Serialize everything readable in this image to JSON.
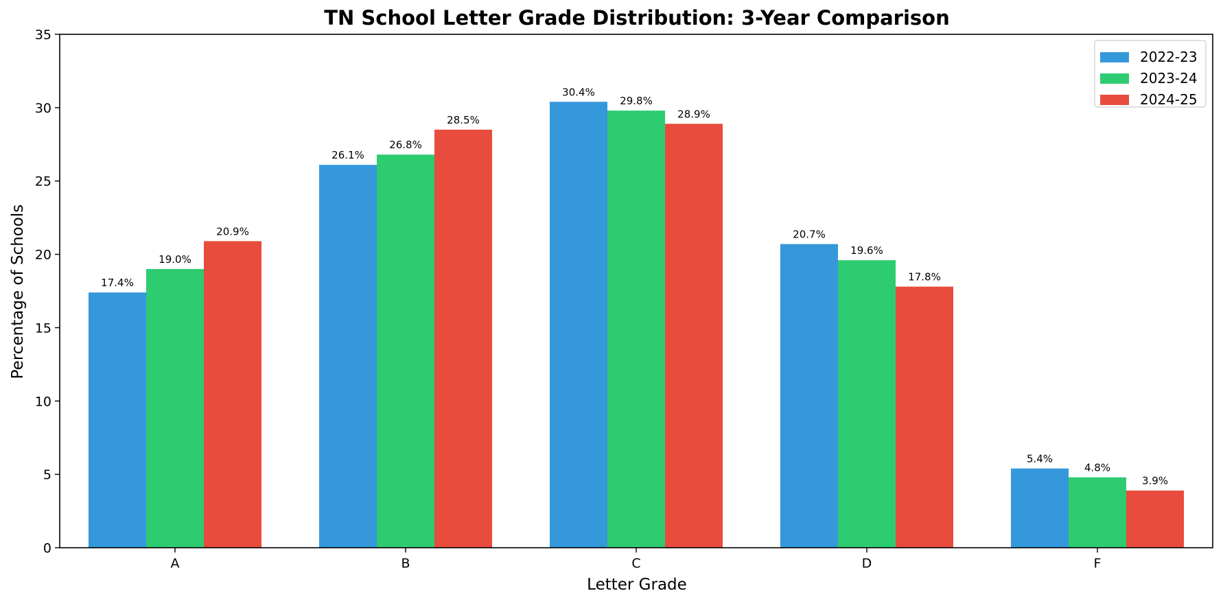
{
  "chart_data": {
    "type": "bar",
    "title": "TN School Letter Grade Distribution: 3-Year Comparison",
    "xlabel": "Letter Grade",
    "ylabel": "Percentage of Schools",
    "categories": [
      "A",
      "B",
      "C",
      "D",
      "F"
    ],
    "series": [
      {
        "name": "2022-23",
        "color": "#3498db",
        "values": [
          17.4,
          26.1,
          30.4,
          20.7,
          5.4
        ]
      },
      {
        "name": "2023-24",
        "color": "#2ecc71",
        "values": [
          19.0,
          26.8,
          29.8,
          19.6,
          4.8
        ]
      },
      {
        "name": "2024-25",
        "color": "#e74c3c",
        "values": [
          20.9,
          28.5,
          28.9,
          17.8,
          3.9
        ]
      }
    ],
    "ylim": [
      0,
      35
    ],
    "yticks": [
      0,
      5,
      10,
      15,
      20,
      25,
      30,
      35
    ],
    "data_label_suffix": "%",
    "grid": false,
    "legend_position": "top-right"
  }
}
